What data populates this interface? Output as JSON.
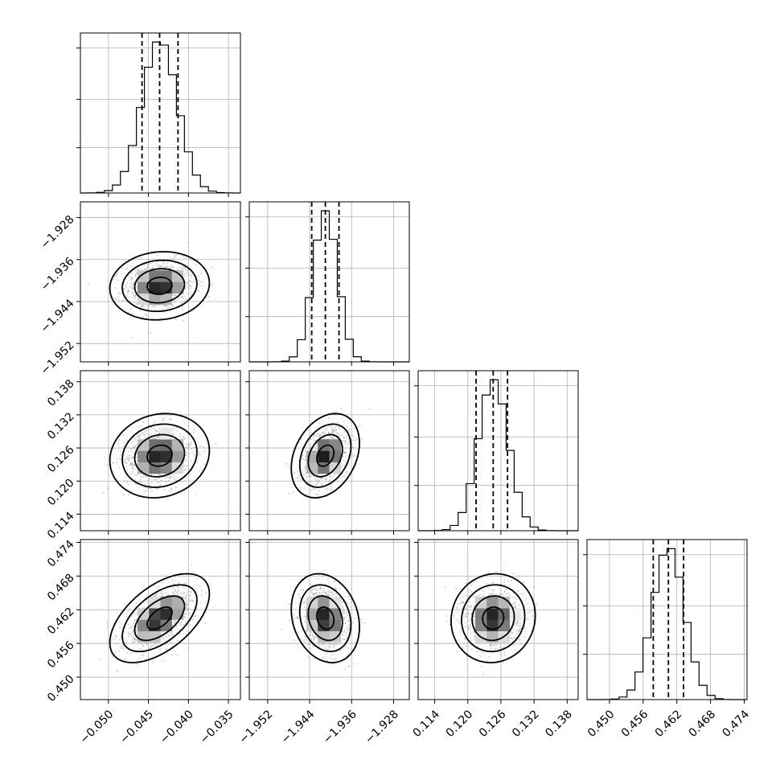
{
  "chart_data": {
    "type": "corner",
    "parameters": [
      {
        "id": "p0",
        "mean": -0.0436,
        "sigma": 0.0022,
        "range": [
          -0.0535,
          -0.0335
        ],
        "ticks": [
          "−0.050",
          "−0.045",
          "−0.040",
          "−0.035"
        ],
        "tick_values": [
          -0.05,
          -0.045,
          -0.04,
          -0.035
        ],
        "quantiles": [
          -0.0458,
          -0.0436,
          -0.0413
        ]
      },
      {
        "id": "p1",
        "mean": -1.941,
        "sigma": 0.0023,
        "range": [
          -1.9555,
          -1.925
        ],
        "ticks": [
          "−1.952",
          "−1.944",
          "−1.936",
          "−1.928"
        ],
        "tick_values": [
          -1.952,
          -1.944,
          -1.936,
          -1.928
        ],
        "quantiles": [
          -1.9436,
          -1.941,
          -1.9384
        ]
      },
      {
        "id": "p2",
        "mean": 0.1246,
        "sigma": 0.0027,
        "range": [
          0.111,
          0.14
        ],
        "ticks": [
          "0.114",
          "0.120",
          "0.126",
          "0.132",
          "0.138"
        ],
        "tick_values": [
          0.114,
          0.12,
          0.126,
          0.132,
          0.138
        ],
        "quantiles": [
          0.1215,
          0.1246,
          0.1272
        ]
      },
      {
        "id": "p3",
        "mean": 0.4605,
        "sigma": 0.0028,
        "range": [
          0.446,
          0.4745
        ],
        "ticks": [
          "0.450",
          "0.456",
          "0.462",
          "0.468",
          "0.474"
        ],
        "tick_values": [
          0.45,
          0.456,
          0.462,
          0.468,
          0.474
        ],
        "quantiles": [
          0.4578,
          0.4605,
          0.4632
        ]
      }
    ],
    "correlations": [
      [
        1.0,
        0.08,
        0.12,
        0.55
      ],
      [
        0.08,
        1.0,
        0.3,
        -0.2
      ],
      [
        0.12,
        0.3,
        1.0,
        0.06
      ],
      [
        0.55,
        -0.2,
        0.06,
        1.0
      ]
    ],
    "contour_sigma_levels": [
      0.5,
      1.0,
      1.5,
      2.0
    ],
    "histogram_bins": 20,
    "grid": true,
    "colors": {
      "line": "#000000",
      "grid": "#b0b0b0",
      "points": "#9a9a9a"
    }
  }
}
